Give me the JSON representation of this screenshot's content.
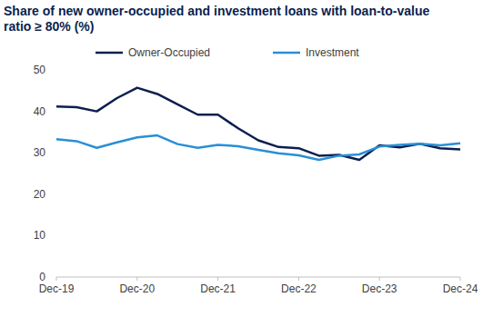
{
  "chart_data": {
    "type": "line",
    "title": "Share of new owner-occupied and investment loans with loan-to-value ratio ≥ 80% (%)",
    "categories": [
      "Dec-19",
      null,
      null,
      null,
      "Dec-20",
      null,
      null,
      null,
      "Dec-21",
      null,
      null,
      null,
      "Dec-22",
      null,
      null,
      null,
      "Dec-23",
      null,
      null,
      null,
      "Dec-24"
    ],
    "series": [
      {
        "name": "Owner-Occupied",
        "color": "#0b1f4f",
        "values": [
          41.2,
          41.0,
          40.0,
          43.2,
          45.7,
          44.2,
          41.7,
          39.2,
          39.2,
          35.9,
          33.0,
          31.4,
          31.1,
          29.3,
          29.5,
          28.3,
          31.8,
          31.3,
          32.2,
          31.1,
          30.8
        ]
      },
      {
        "name": "Investment",
        "color": "#2a8fd6",
        "values": [
          33.3,
          32.8,
          31.2,
          32.5,
          33.7,
          34.2,
          32.1,
          31.2,
          31.9,
          31.6,
          30.7,
          29.9,
          29.4,
          28.3,
          29.3,
          29.6,
          31.5,
          31.9,
          32.2,
          31.8,
          32.3
        ]
      }
    ],
    "ylim": [
      0,
      50
    ],
    "yticks": [
      0,
      10,
      20,
      30,
      40,
      50
    ],
    "grid": false,
    "legend": "top"
  }
}
